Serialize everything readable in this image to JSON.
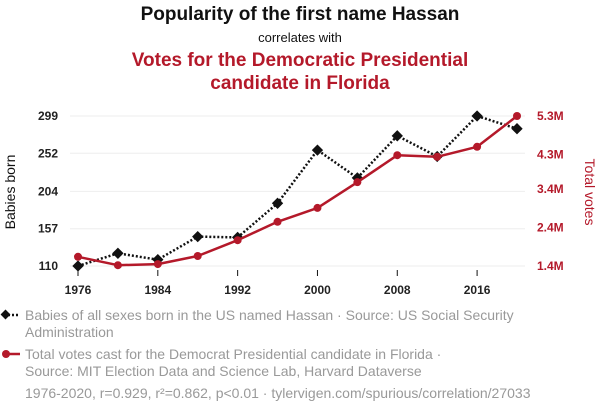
{
  "colors": {
    "series1": "#111111",
    "series2": "#b4192a",
    "grid": "#eeeeee",
    "muted": "#999999"
  },
  "header": {
    "title": "Popularity of the first name Hassan",
    "subtitle": "correlates with",
    "title2_line1": "Votes for the Democratic Presidential",
    "title2_line2": "candidate in Florida"
  },
  "legend": {
    "series1_line1": "Babies of all sexes born in the US named Hassan · Source: US Social Security",
    "series1_line2": "Administration",
    "series2_line1": "Total votes cast for the Democrat Presidential candidate in Florida ·",
    "series2_line2": "Source: MIT Election Data and Science Lab, Harvard Dataverse"
  },
  "footer": "1976-2020, r=0.929, r²=0.862, p<0.01 · tylervigen.com/spurious/correlation/27033",
  "chart_data": {
    "type": "line",
    "x": [
      1976,
      1980,
      1984,
      1988,
      1992,
      1996,
      2000,
      2004,
      2008,
      2012,
      2016,
      2020
    ],
    "x_ticks": [
      1976,
      1984,
      1992,
      2000,
      2008,
      2016
    ],
    "ylabel_left": "Babies born",
    "ylabel_right": "Total votes",
    "left_axis": {
      "ylim": [
        110,
        299
      ],
      "ticks": [
        110,
        157,
        204,
        252,
        299
      ],
      "tick_labels": [
        "110",
        "157",
        "204",
        "252",
        "299"
      ]
    },
    "right_axis": {
      "ylim": [
        1.4,
        5.3
      ],
      "ticks": [
        1.4,
        2.4,
        3.4,
        4.3,
        5.3
      ],
      "tick_labels": [
        "1.4M",
        "2.4M",
        "3.4M",
        "4.3M",
        "5.3M"
      ],
      "unit": "M"
    },
    "series": [
      {
        "name": "Babies of all sexes born in the US named Hassan",
        "axis": "left",
        "style": "dotted",
        "marker": "diamond",
        "color": "#111111",
        "values": [
          110,
          126,
          118,
          147,
          146,
          189,
          256,
          221,
          274,
          248,
          299,
          283
        ]
      },
      {
        "name": "Total votes cast for the Democrat Presidential candidate in Florida",
        "axis": "right",
        "style": "solid",
        "marker": "circle",
        "color": "#b4192a",
        "values": [
          1.64,
          1.42,
          1.45,
          1.66,
          2.07,
          2.55,
          2.91,
          3.58,
          4.28,
          4.24,
          4.5,
          5.3
        ]
      }
    ],
    "grid": "horizontal"
  }
}
